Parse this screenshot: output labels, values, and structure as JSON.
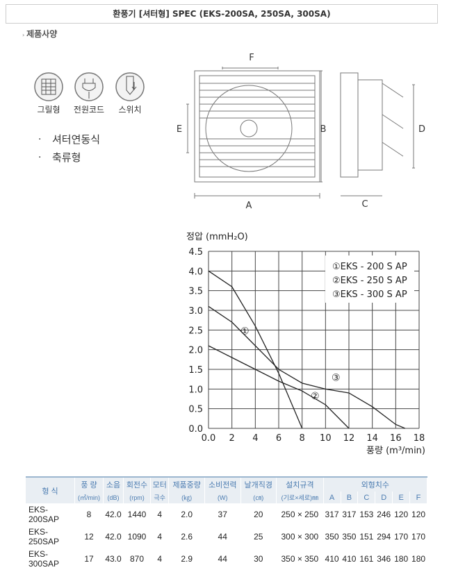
{
  "header": {
    "title": "환풍기 [셔터형] SPEC (EKS-200SA, 250SA, 300SA)",
    "section": "제품사양"
  },
  "features": {
    "icons": [
      "그릴형",
      "전원코드",
      "스위치"
    ],
    "bullets": [
      "셔터연동식",
      "축류형"
    ]
  },
  "diagram": {
    "labels": [
      "F",
      "E",
      "B",
      "A",
      "D",
      "C"
    ]
  },
  "chart_data": {
    "type": "line",
    "title": "정압 (mmH₂O)",
    "x_label": "풍량 (m³/min)",
    "x": [
      0,
      2,
      4,
      6,
      8,
      10,
      12,
      14,
      16,
      16.8
    ],
    "series": [
      {
        "name": "①EKS - 200 S AP",
        "tag": "①",
        "color": "#222",
        "values": [
          4.0,
          3.6,
          2.6,
          1.4,
          0,
          null,
          null,
          null,
          null,
          null
        ]
      },
      {
        "name": "②EKS - 250 S AP",
        "tag": "②",
        "color": "#222",
        "values": [
          2.1,
          1.8,
          1.5,
          1.2,
          0.95,
          0.6,
          0,
          null,
          null,
          null
        ]
      },
      {
        "name": "③EKS - 300 S AP",
        "tag": "③",
        "color": "#222",
        "values": [
          3.1,
          2.7,
          2.1,
          1.5,
          1.15,
          1.0,
          0.9,
          0.55,
          0.1,
          0
        ]
      }
    ],
    "xlim": [
      0,
      18
    ],
    "xticks": [
      {
        "value": 0,
        "label": "0.0"
      },
      2,
      4,
      6,
      8,
      10,
      12,
      14,
      16,
      18
    ],
    "ylim": [
      0,
      4.5
    ],
    "yticks": [
      {
        "value": 0,
        "label": "0.0"
      },
      0.5,
      {
        "value": 1,
        "label": "1.0"
      },
      1.5,
      {
        "value": 2,
        "label": "2.0"
      },
      2.5,
      {
        "value": 3,
        "label": "3.0"
      },
      3.5,
      {
        "value": 4,
        "label": "4.0"
      },
      4.5
    ],
    "grid": true
  },
  "table": {
    "head1": [
      "형 식",
      "풍 량",
      "소음",
      "회전수",
      "모터",
      "제품중량",
      "소비전력",
      "날개직경",
      "설치규격",
      "외형치수"
    ],
    "head2": [
      "(㎥/min)",
      "(dB)",
      "(rpm)",
      "극수",
      "(㎏)",
      "(W)",
      "(㎝)",
      "(기로×세로)㎜",
      "A",
      "B",
      "C",
      "D",
      "E",
      "F"
    ],
    "rows": [
      [
        "EKS-200SAP",
        "8",
        "42.0",
        "1440",
        "4",
        "2.0",
        "37",
        "20",
        "250 × 250",
        "317",
        "317",
        "153",
        "246",
        "120",
        "120"
      ],
      [
        "EKS-250SAP",
        "12",
        "42.0",
        "1090",
        "4",
        "2.6",
        "44",
        "25",
        "300 × 300",
        "350",
        "350",
        "151",
        "294",
        "170",
        "170"
      ],
      [
        "EKS-300SAP",
        "17",
        "43.0",
        "870",
        "4",
        "2.9",
        "44",
        "30",
        "350 × 350",
        "410",
        "410",
        "161",
        "346",
        "180",
        "180"
      ]
    ]
  }
}
